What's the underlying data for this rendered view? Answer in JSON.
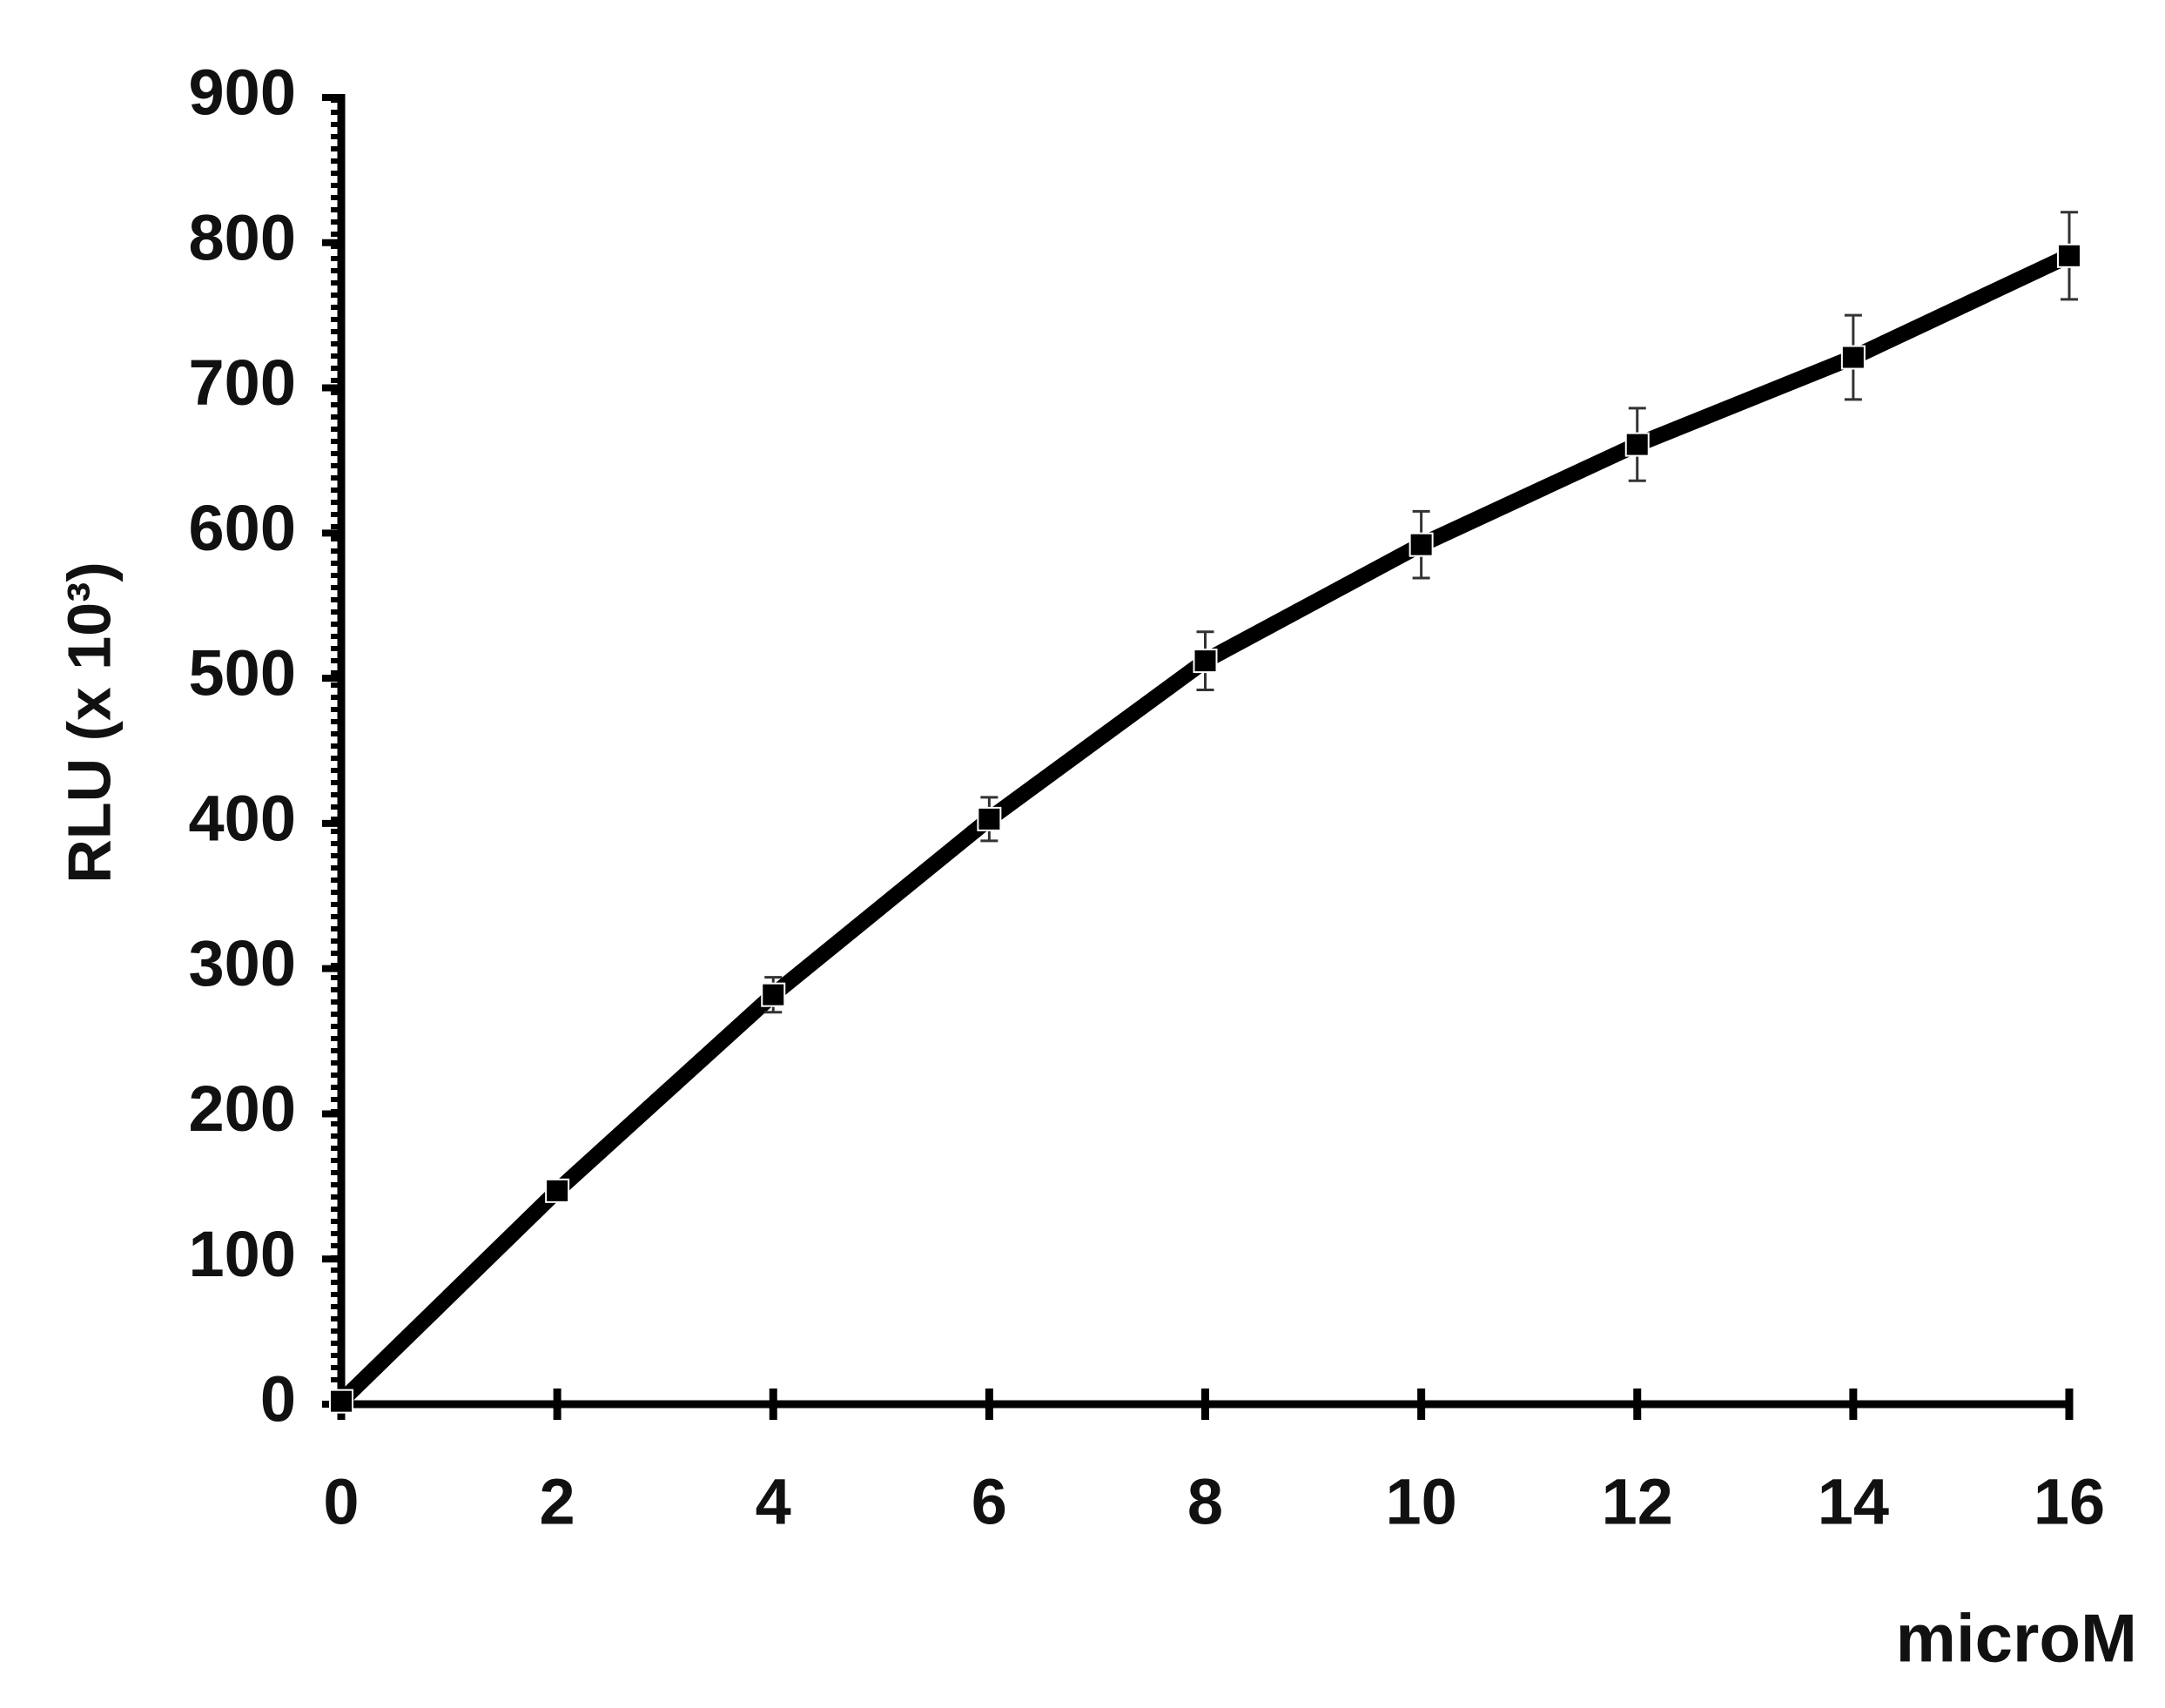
{
  "chart_data": {
    "type": "line",
    "x_label": "microM",
    "y_label": "RLU (x 10³)",
    "x": [
      0,
      2,
      4,
      6,
      8,
      10,
      12,
      14,
      16
    ],
    "series": [
      {
        "color": "#000000",
        "values": [
          2,
          147,
          282,
          403,
          512,
          592,
          661,
          721,
          791
        ],
        "errors": [
          2,
          5,
          12,
          15,
          20,
          23,
          25,
          29,
          30
        ]
      }
    ],
    "xlim": [
      0,
      16
    ],
    "xticks": [
      0,
      2,
      4,
      6,
      8,
      10,
      12,
      14,
      16
    ],
    "ylim": [
      0,
      900
    ],
    "yticks": [
      0,
      100,
      200,
      300,
      400,
      500,
      600,
      700,
      800,
      900
    ]
  }
}
